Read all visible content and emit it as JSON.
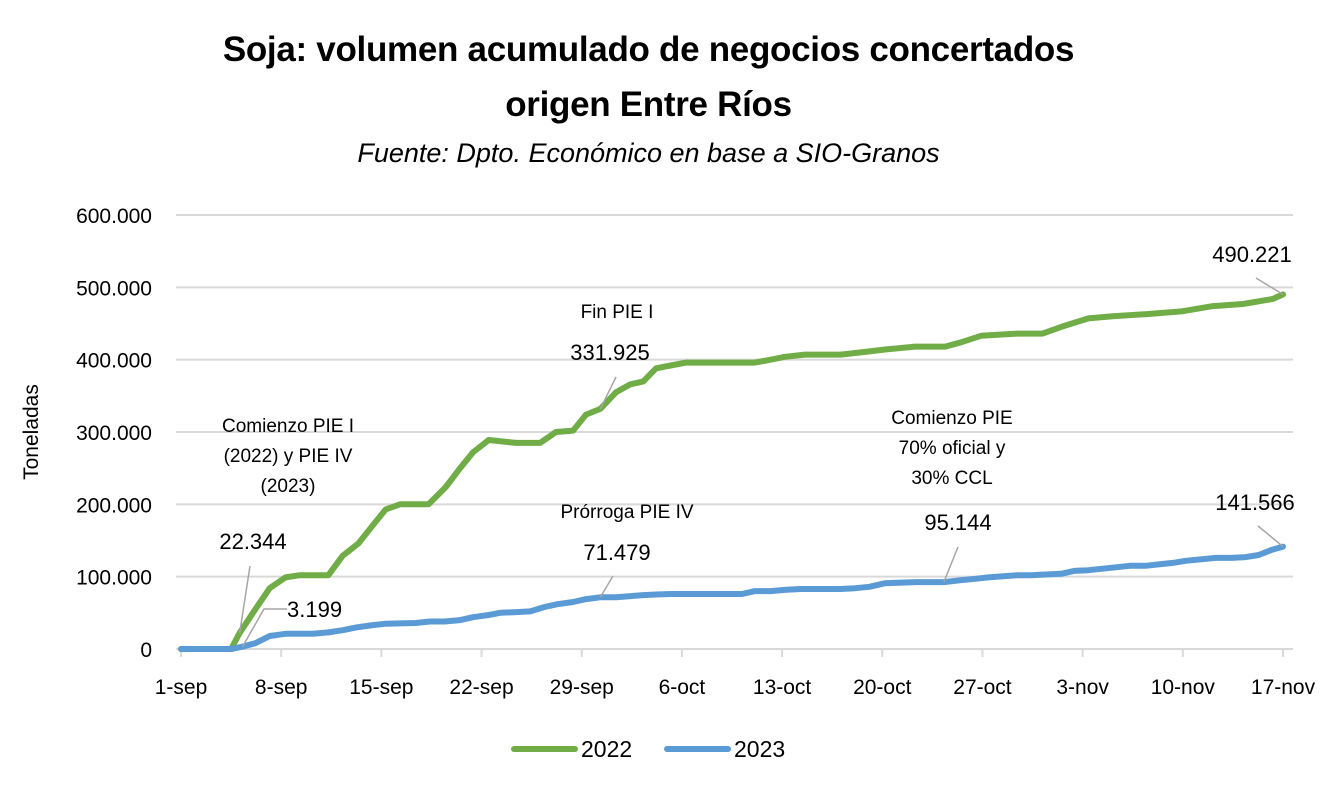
{
  "chart_data": {
    "type": "line",
    "title": "Soja: volumen acumulado de negocios concertados origen Entre Ríos",
    "title_lines": [
      "Soja: volumen acumulado de negocios concertados",
      "origen Entre Ríos"
    ],
    "subtitle": "Fuente: Dpto. Económico en base a SIO-Granos",
    "xlabel": "",
    "ylabel": "Toneladas",
    "ylim": [
      0,
      600000
    ],
    "yticks": [
      0,
      100000,
      200000,
      300000,
      400000,
      500000,
      600000
    ],
    "ytick_labels": [
      "0",
      "100.000",
      "200.000",
      "300.000",
      "400.000",
      "500.000",
      "600.000"
    ],
    "x_unit": "days since 1-sep",
    "xlim": [
      0,
      77
    ],
    "xticks": [
      0,
      7,
      14,
      21,
      28,
      35,
      42,
      49,
      56,
      63,
      70,
      77
    ],
    "xtick_labels": [
      "1-sep",
      "8-sep",
      "15-sep",
      "22-sep",
      "29-sep",
      "6-oct",
      "13-oct",
      "20-oct",
      "27-oct",
      "3-nov",
      "10-nov",
      "17-nov"
    ],
    "grid": true,
    "legend": {
      "position": "bottom",
      "entries": [
        "2022",
        "2023"
      ]
    },
    "series": [
      {
        "name": "2022",
        "color": "#70AD47",
        "x": [
          0,
          3.5,
          4.1,
          5.2,
          6.2,
          7.3,
          8.3,
          10.3,
          11.3,
          12.4,
          13.4,
          14.3,
          15.3,
          17.3,
          18.5,
          19.5,
          20.4,
          21.5,
          23.4,
          25.1,
          26.2,
          27.4,
          28.3,
          29.3,
          30.4,
          31.4,
          32.3,
          33.2,
          34.2,
          35.3,
          36.3,
          40.1,
          41.2,
          42.2,
          43.6,
          46.1,
          47.5,
          49.2,
          51.3,
          53.4,
          54.5,
          55.9,
          58.4,
          60.2,
          61.6,
          63.4,
          65.1,
          67.5,
          70.0,
          72.1,
          74.2,
          76.3,
          77.0
        ],
        "values": [
          0,
          0,
          22344,
          55000,
          84000,
          99000,
          102000,
          102000,
          129000,
          146000,
          171000,
          193000,
          200000,
          200000,
          224000,
          250000,
          272000,
          289000,
          285000,
          285000,
          300000,
          302000,
          324000,
          331925,
          355000,
          366000,
          370000,
          388000,
          392000,
          396000,
          396000,
          396000,
          400000,
          404000,
          407000,
          407000,
          410000,
          414000,
          418000,
          418000,
          424000,
          433000,
          436000,
          436000,
          446000,
          457000,
          460000,
          463000,
          467000,
          474000,
          477000,
          484000,
          490221
        ]
      },
      {
        "name": "2023",
        "color": "#5B9BD5",
        "x": [
          0,
          3.5,
          4.3,
          5.2,
          6.2,
          7.3,
          9.2,
          10.3,
          11.3,
          12.3,
          13.4,
          14.3,
          16.4,
          17.4,
          18.4,
          19.5,
          20.4,
          21.5,
          22.3,
          23.4,
          24.4,
          25.4,
          26.3,
          27.4,
          28.3,
          29.3,
          30.4,
          31.3,
          32.3,
          33.4,
          34.3,
          35.3,
          36.3,
          39.2,
          40.1,
          41.2,
          42.3,
          43.3,
          46.1,
          47.1,
          48.1,
          49.2,
          51.4,
          53.3,
          54.5,
          55.5,
          56.4,
          58.5,
          59.4,
          60.4,
          61.5,
          62.4,
          63.4,
          64.4,
          66.3,
          67.4,
          68.3,
          69.3,
          70.2,
          72.3,
          73.4,
          74.4,
          75.3,
          76.2,
          77.0
        ],
        "values": [
          0,
          0,
          3199,
          8000,
          18000,
          21000,
          21000,
          23000,
          26000,
          30000,
          33000,
          35000,
          36000,
          38000,
          38000,
          40000,
          44000,
          47000,
          50000,
          51000,
          52000,
          58000,
          62000,
          65000,
          69000,
          71479,
          71479,
          73000,
          74500,
          75500,
          76000,
          76000,
          76000,
          76000,
          80000,
          80000,
          82000,
          83000,
          83000,
          84000,
          86000,
          91000,
          92500,
          92500,
          95144,
          97000,
          99000,
          102000,
          102000,
          103000,
          104000,
          108000,
          109000,
          111000,
          115000,
          115000,
          117000,
          119000,
          122000,
          126000,
          126000,
          127000,
          130000,
          137000,
          141566
        ]
      }
    ],
    "annotations": [
      {
        "series": "2022",
        "x": 4.1,
        "label": "22.344",
        "note_lines": [
          "Comienzo PIE I",
          "(2022) y PIE IV",
          "(2023)"
        ]
      },
      {
        "series": "2023",
        "x": 4.3,
        "label": "3.199",
        "note_lines": []
      },
      {
        "series": "2022",
        "x": 29.3,
        "label": "331.925",
        "note_lines": [
          "Fin PIE I"
        ]
      },
      {
        "series": "2023",
        "x": 29.3,
        "label": "71.479",
        "note_lines": [
          "Prórroga PIE IV"
        ]
      },
      {
        "series": "2023",
        "x": 53.3,
        "label": "95.144",
        "note_lines": [
          "Comienzo PIE",
          "70% oficial y",
          "30% CCL"
        ]
      },
      {
        "series": "2022",
        "x": 77.0,
        "label": "490.221",
        "note_lines": []
      },
      {
        "series": "2023",
        "x": 77.0,
        "label": "141.566",
        "note_lines": []
      }
    ]
  },
  "colors": {
    "series_2022": "#70AD47",
    "series_2023": "#5B9BD5",
    "gridline": "#D9D9D9",
    "leader_line": "#A6A6A6"
  }
}
